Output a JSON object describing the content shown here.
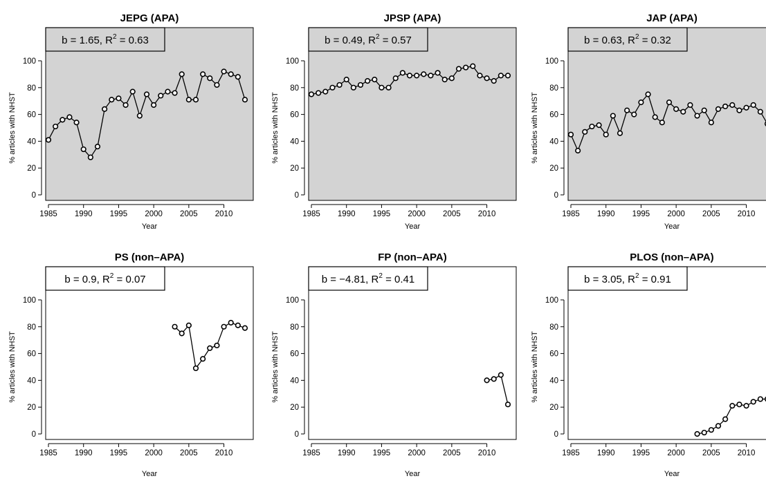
{
  "figure": {
    "x_tick_labels": [
      "1985",
      "1990",
      "1995",
      "2000",
      "2005",
      "2010"
    ],
    "y_tick_labels": [
      "0",
      "20",
      "40",
      "60",
      "80",
      "100"
    ],
    "colors": {
      "shaded_panel": "#d3d3d3",
      "line": "#000000",
      "point_fill": "#ffffff"
    }
  },
  "chart_data": [
    {
      "type": "line",
      "title": "JEPG (APA)",
      "xlabel": "Year",
      "ylabel": "% articles with NHST",
      "xlim": [
        1985,
        2013
      ],
      "ylim": [
        0,
        100
      ],
      "shaded": true,
      "annotation": {
        "b": "b = 1.65, ",
        "r": "R",
        "sup": "2",
        "rest": " = 0.63"
      },
      "x": [
        1985,
        1986,
        1987,
        1988,
        1989,
        1990,
        1991,
        1992,
        1993,
        1994,
        1995,
        1996,
        1997,
        1998,
        1999,
        2000,
        2001,
        2002,
        2003,
        2004,
        2005,
        2006,
        2007,
        2008,
        2009,
        2010,
        2011,
        2012,
        2013
      ],
      "y": [
        41,
        51,
        56,
        58,
        54,
        34,
        28,
        36,
        64,
        71,
        72,
        67,
        77,
        59,
        75,
        67,
        74,
        77,
        76,
        90,
        71,
        71,
        90,
        87,
        82,
        92,
        90,
        88,
        71
      ]
    },
    {
      "type": "line",
      "title": "JPSP (APA)",
      "xlabel": "Year",
      "ylabel": "% articles with NHST",
      "xlim": [
        1985,
        2013
      ],
      "ylim": [
        0,
        100
      ],
      "shaded": true,
      "annotation": {
        "b": "b = 0.49, ",
        "r": "R",
        "sup": "2",
        "rest": " = 0.57"
      },
      "x": [
        1985,
        1986,
        1987,
        1988,
        1989,
        1990,
        1991,
        1992,
        1993,
        1994,
        1995,
        1996,
        1997,
        1998,
        1999,
        2000,
        2001,
        2002,
        2003,
        2004,
        2005,
        2006,
        2007,
        2008,
        2009,
        2010,
        2011,
        2012,
        2013
      ],
      "y": [
        75,
        76,
        77,
        80,
        82,
        86,
        80,
        82,
        85,
        86,
        80,
        80,
        87,
        91,
        89,
        89,
        90,
        89,
        91,
        86,
        87,
        94,
        95,
        96,
        89,
        87,
        85,
        89,
        89
      ]
    },
    {
      "type": "line",
      "title": "JAP (APA)",
      "xlabel": "Year",
      "ylabel": "% articles with NHST",
      "xlim": [
        1985,
        2013
      ],
      "ylim": [
        0,
        100
      ],
      "shaded": true,
      "annotation": {
        "b": "b = 0.63, ",
        "r": "R",
        "sup": "2",
        "rest": " = 0.32"
      },
      "x": [
        1985,
        1986,
        1987,
        1988,
        1989,
        1990,
        1991,
        1992,
        1993,
        1994,
        1995,
        1996,
        1997,
        1998,
        1999,
        2000,
        2001,
        2002,
        2003,
        2004,
        2005,
        2006,
        2007,
        2008,
        2009,
        2010,
        2011,
        2012,
        2013
      ],
      "y": [
        45,
        33,
        47,
        51,
        52,
        45,
        59,
        46,
        63,
        60,
        69,
        75,
        58,
        54,
        69,
        64,
        62,
        67,
        59,
        63,
        54,
        64,
        66,
        67,
        63,
        65,
        67,
        62,
        53
      ]
    },
    {
      "type": "line",
      "title": "PS (non–APA)",
      "xlabel": "Year",
      "ylabel": "% articles with NHST",
      "xlim": [
        1985,
        2013
      ],
      "ylim": [
        0,
        100
      ],
      "shaded": false,
      "annotation": {
        "b": "b = 0.9, ",
        "r": "R",
        "sup": "2",
        "rest": " = 0.07"
      },
      "x": [
        2003,
        2004,
        2005,
        2006,
        2007,
        2008,
        2009,
        2010,
        2011,
        2012,
        2013
      ],
      "y": [
        80,
        75,
        81,
        49,
        56,
        64,
        66,
        80,
        83,
        81,
        79
      ]
    },
    {
      "type": "line",
      "title": "FP (non–APA)",
      "xlabel": "Year",
      "ylabel": "% articles with NHST",
      "xlim": [
        1985,
        2013
      ],
      "ylim": [
        0,
        100
      ],
      "shaded": false,
      "annotation": {
        "b": "b = −4.81, ",
        "r": "R",
        "sup": "2",
        "rest": " = 0.41"
      },
      "x": [
        2010,
        2011,
        2012,
        2013
      ],
      "y": [
        40,
        41,
        44,
        22
      ]
    },
    {
      "type": "line",
      "title": "PLOS (non–APA)",
      "xlabel": "Year",
      "ylabel": "% articles with NHST",
      "xlim": [
        1985,
        2013
      ],
      "ylim": [
        0,
        100
      ],
      "shaded": false,
      "annotation": {
        "b": "b = 3.05, ",
        "r": "R",
        "sup": "2",
        "rest": " = 0.91"
      },
      "x": [
        2003,
        2004,
        2005,
        2006,
        2007,
        2008,
        2009,
        2010,
        2011,
        2012,
        2013
      ],
      "y": [
        0,
        1,
        3,
        6,
        11,
        21,
        22,
        21,
        24,
        26,
        26
      ]
    }
  ]
}
